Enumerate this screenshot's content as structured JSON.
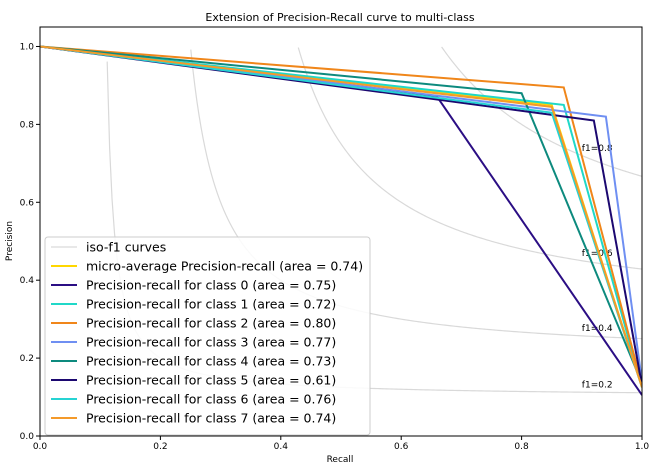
{
  "chart_data": {
    "type": "line",
    "title": "Extension of Precision-Recall curve to multi-class",
    "xlabel": "Recall",
    "ylabel": "Precision",
    "xlim": [
      0.0,
      1.0
    ],
    "ylim": [
      0.0,
      1.05
    ],
    "x_ticks": [
      "0.0",
      "0.2",
      "0.4",
      "0.6",
      "0.8",
      "1.0"
    ],
    "y_ticks": [
      "0.0",
      "0.2",
      "0.4",
      "0.6",
      "0.8",
      "1.0"
    ],
    "grid": false,
    "legend_position": "lower-left",
    "iso_f1": {
      "legend_label": "iso-f1 curves",
      "color": "#d9d9d9",
      "values": [
        0.2,
        0.4,
        0.6,
        0.8
      ],
      "labels": [
        "f1=0.2",
        "f1=0.4",
        "f1=0.6",
        "f1=0.8"
      ],
      "label_x": 0.9
    },
    "series": [
      {
        "name": "micro-average Precision-recall (area = 0.74)",
        "color": "#ffd700",
        "x": [
          0.0,
          0.85,
          1.0
        ],
        "y": [
          1.0,
          0.85,
          0.125
        ]
      },
      {
        "name": "Precision-recall for class 0 (area = 0.75)",
        "color": "#2b0e84",
        "x": [
          0.0,
          0.66,
          1.0
        ],
        "y": [
          1.0,
          0.87,
          0.105
        ]
      },
      {
        "name": "Precision-recall for class 1 (area = 0.72)",
        "color": "#20d8c8",
        "x": [
          0.0,
          0.87,
          1.0
        ],
        "y": [
          1.0,
          0.85,
          0.125
        ]
      },
      {
        "name": "Precision-recall for class 2 (area = 0.80)",
        "color": "#f0861a",
        "x": [
          0.0,
          0.87,
          1.0
        ],
        "y": [
          1.0,
          0.895,
          0.13
        ]
      },
      {
        "name": "Precision-recall for class 3 (area = 0.77)",
        "color": "#6f8ff2",
        "x": [
          0.0,
          0.94,
          1.0
        ],
        "y": [
          1.0,
          0.82,
          0.14
        ]
      },
      {
        "name": "Precision-recall for class 4 (area = 0.73)",
        "color": "#0d8a7e",
        "x": [
          0.0,
          0.8,
          1.0
        ],
        "y": [
          1.0,
          0.88,
          0.135
        ]
      },
      {
        "name": "Precision-recall for class 5 (area = 0.61)",
        "color": "#1c0870",
        "x": [
          0.0,
          0.92,
          1.0
        ],
        "y": [
          1.0,
          0.81,
          0.13
        ]
      },
      {
        "name": "Precision-recall for class 6 (area = 0.76)",
        "color": "#26d3d3",
        "x": [
          0.0,
          0.85,
          1.0
        ],
        "y": [
          1.0,
          0.83,
          0.125
        ]
      },
      {
        "name": "Precision-recall for class 7 (area = 0.74)",
        "color": "#f49a2a",
        "x": [
          0.0,
          0.85,
          1.0
        ],
        "y": [
          1.0,
          0.845,
          0.125
        ]
      }
    ]
  }
}
